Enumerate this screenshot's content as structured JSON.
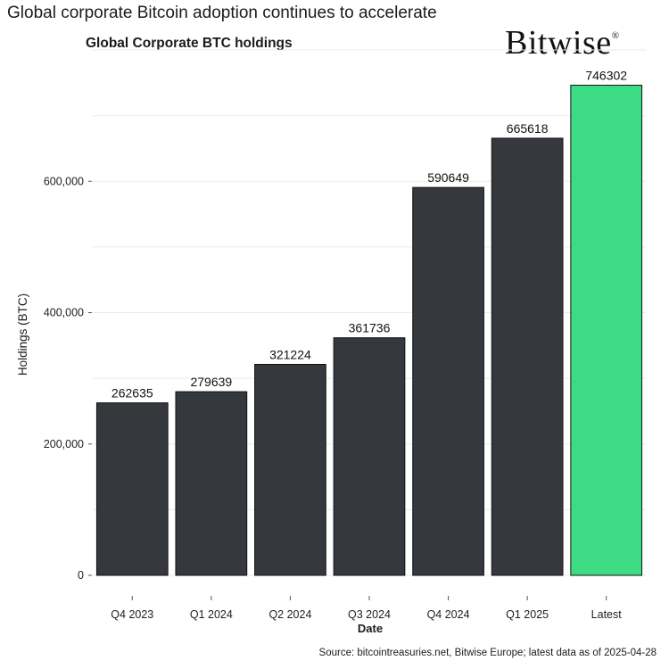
{
  "headline": "Global corporate Bitcoin adoption continues to accelerate",
  "logo_text": "Bitwise",
  "logo_mark": "®",
  "source_note": "Source: bitcointreasuries.net, Bitwise Europe; latest data as of 2025-04-28",
  "chart_data": {
    "type": "bar",
    "title": "Global Corporate BTC holdings",
    "xlabel": "Date",
    "ylabel": "Holdings (BTC)",
    "categories": [
      "Q4 2023",
      "Q1 2024",
      "Q2 2024",
      "Q3 2024",
      "Q4 2024",
      "Q1 2025",
      "Latest"
    ],
    "values": [
      262635,
      279639,
      321224,
      361736,
      590649,
      665618,
      746302
    ],
    "data_labels": [
      "262635",
      "279639",
      "321224",
      "361736",
      "590649",
      "665618",
      "746302"
    ],
    "yticks": [
      0,
      200000,
      400000,
      600000
    ],
    "ytick_labels": [
      "0",
      "200,000",
      "400,000",
      "600,000"
    ],
    "ylim": [
      0,
      800000
    ],
    "grid": true,
    "legend": "none",
    "colors": {
      "default_bar": "#35383c",
      "highlight_bar": "#3ddc84",
      "bar_edge": "#111111",
      "grid": "#ebebeb"
    },
    "highlight_category": "Latest"
  }
}
